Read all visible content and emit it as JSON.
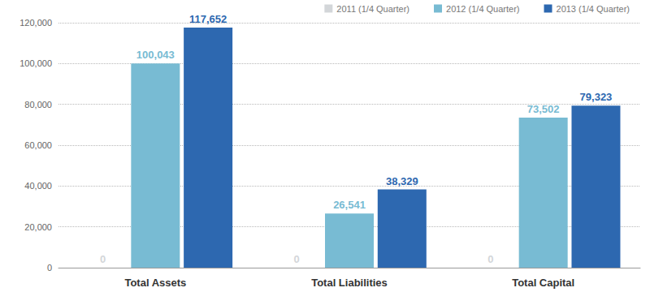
{
  "chart_data": {
    "type": "bar",
    "categories": [
      "Total Assets",
      "Total Liabilities",
      "Total Capital"
    ],
    "series": [
      {
        "name": "2011 (1/4 Quarter)",
        "color": "#d3d6d9",
        "values": [
          0,
          0,
          0
        ]
      },
      {
        "name": "2012 (1/4 Quarter)",
        "color": "#78bbd3",
        "values": [
          100043,
          26541,
          73502
        ],
        "value_labels": [
          "100,043",
          "26,541",
          "73,502"
        ]
      },
      {
        "name": "2013 (1/4 Quarter)",
        "color": "#2d68b0",
        "values": [
          117652,
          38329,
          79323
        ],
        "value_labels": [
          "117,652",
          "38,329",
          "79,323"
        ]
      }
    ],
    "ylim": [
      0,
      120000
    ],
    "yticks": [
      0,
      {
        "value": 20000,
        "label": "20,000"
      },
      {
        "value": 40000,
        "label": "40,000"
      },
      {
        "value": 60000,
        "label": "60,000"
      },
      {
        "value": 80000,
        "label": "80,000"
      },
      {
        "value": 100000,
        "label": "100,000"
      },
      {
        "value": 120000,
        "label": "120,000"
      }
    ],
    "grid": true,
    "data_labels": true,
    "legend": "top-right"
  }
}
